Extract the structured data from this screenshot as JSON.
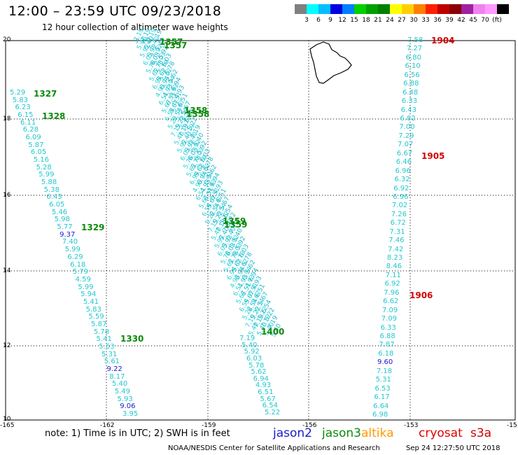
{
  "header": {
    "title": "12:00 – 23:59 UTC 09/23/2018",
    "subtitle": "12 hour collection of altimeter wave heights"
  },
  "scale": {
    "colors": [
      "#808080",
      "#00ffff",
      "#00bfff",
      "#0000e0",
      "#007fff",
      "#00d000",
      "#00a000",
      "#008000",
      "#ffff00",
      "#ffd000",
      "#ff8000",
      "#ff2000",
      "#c00000",
      "#8b0000",
      "#a020a0",
      "#ee82ee",
      "#ff99ff",
      "#000000"
    ],
    "labels": [
      "3",
      "6",
      "9",
      "12",
      "15",
      "18",
      "21",
      "24",
      "27",
      "30",
      "33",
      "36",
      "39",
      "42",
      "45",
      "70",
      "(ft)"
    ]
  },
  "axes": {
    "lat_ticks": [
      "20",
      "18",
      "16",
      "14",
      "12",
      "10"
    ],
    "lon_ticks": [
      "-165",
      "-162",
      "-159",
      "-156",
      "-153",
      "-15"
    ]
  },
  "passes": [
    {
      "id": "1327",
      "color": "green"
    },
    {
      "id": "1328",
      "color": "green"
    },
    {
      "id": "1329",
      "color": "green"
    },
    {
      "id": "1330",
      "color": "green"
    },
    {
      "id": "1357",
      "color": "green"
    },
    {
      "id": "1357",
      "color": "green"
    },
    {
      "id": "1358",
      "color": "green"
    },
    {
      "id": "1358",
      "color": "green"
    },
    {
      "id": "1359",
      "color": "green"
    },
    {
      "id": "1359",
      "color": "green"
    },
    {
      "id": "1400",
      "color": "green"
    },
    {
      "id": "1904",
      "color": "red"
    },
    {
      "id": "1905",
      "color": "red"
    },
    {
      "id": "1906",
      "color": "red"
    }
  ],
  "tracks": {
    "left": [
      "5.29",
      "5.83",
      "6.23",
      "6.15",
      "6.11",
      "6.28",
      "6.09",
      "5.87",
      "6.05",
      "5.16",
      "5.28",
      "5.99",
      "5.88",
      "5.38",
      "6.43",
      "6.05",
      "5.46",
      "5.98",
      "5.77",
      "9.37",
      "7.40",
      "5.99",
      "6.29",
      "6.18",
      "5.79",
      "4.59",
      "5.99",
      "5.94",
      "5.41",
      "5.83",
      "5.59",
      "5.87",
      "5.78",
      "5.41",
      "5.63",
      "5.31",
      "5.61",
      "9.22",
      "8.17",
      "5.40",
      "5.49",
      "5.93",
      "9.06",
      "3.95"
    ],
    "left_blue": [
      "9.37",
      "9.22",
      "9.06"
    ],
    "right": [
      "7.58",
      "7.27",
      "6.80",
      "6.10",
      "6.56",
      "6.88",
      "6.48",
      "6.33",
      "6.43",
      "6.82",
      "7.00",
      "7.29",
      "7.07",
      "6.67",
      "6.46",
      "6.96",
      "6.32",
      "6.92",
      "6.96",
      "7.02",
      "7.26",
      "6.72",
      "7.31",
      "7.46",
      "7.42",
      "8.23",
      "8.46",
      "7.11",
      "6.92",
      "7.96",
      "6.62",
      "7.09",
      "7.09",
      "6.33",
      "6.88",
      "7.87",
      "6.18",
      "9.60",
      "7.18",
      "5.31",
      "6.53",
      "6.17",
      "6.64",
      "6.98"
    ],
    "right_blue": [
      "9.60"
    ],
    "middle_visible": [
      "7.19",
      "5.40",
      "5.92",
      "6.03",
      "5.78",
      "5.62",
      "6.94",
      "4.93",
      "6.51",
      "5.67",
      "6.54",
      "5.22"
    ]
  },
  "legend": {
    "note": "note: 1) Time is in UTC; 2) SWH is in feet",
    "sats": [
      {
        "name": "jason2",
        "color": "#1a1acc"
      },
      {
        "name": "jason3",
        "color": "#0c8a0c"
      },
      {
        "name": "altika",
        "color": "#ff9900"
      },
      {
        "name": "cryosat",
        "color": "#e00000"
      },
      {
        "name": "s3a",
        "color": "#cc0000"
      }
    ]
  },
  "footer": {
    "credit": "NOAA/NESDIS Center for Satellite Applications and Research",
    "timestamp": "Sep 24 12:27:50 UTC 2018"
  }
}
